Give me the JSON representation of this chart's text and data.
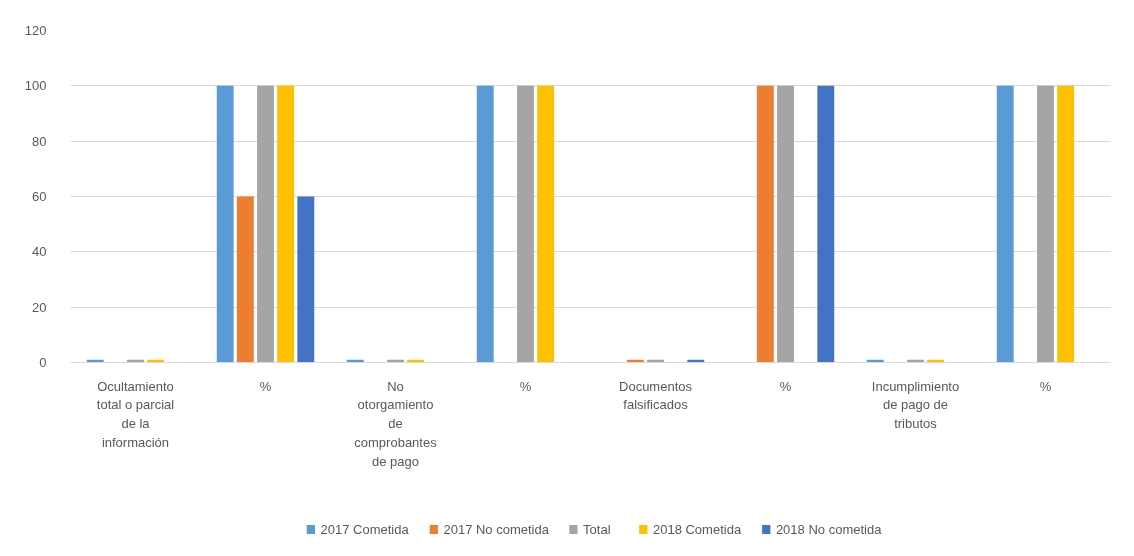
{
  "chart_data": {
    "type": "bar",
    "categories": [
      "Ocultamiento total o parcial de la información",
      "%",
      "No otorgamiento de comprobantes de pago",
      "%",
      "Documentos falsificados",
      "%",
      "Incumplimiento de pago de tributos",
      "%"
    ],
    "series": [
      {
        "name": "2017 Cometida",
        "color": "#5b9bd5",
        "values": [
          1,
          100,
          1,
          100,
          null,
          null,
          1,
          100
        ]
      },
      {
        "name": "2017 No cometida",
        "color": "#ed7d31",
        "values": [
          null,
          60,
          null,
          null,
          1,
          100,
          null,
          null
        ]
      },
      {
        "name": "Total",
        "color": "#a5a5a5",
        "values": [
          1,
          100,
          1,
          100,
          1,
          100,
          1,
          100
        ]
      },
      {
        "name": "2018 Cometida",
        "color": "#ffc000",
        "values": [
          1,
          100,
          1,
          100,
          null,
          null,
          1,
          100
        ]
      },
      {
        "name": "2018 No cometida",
        "color": "#4472c4",
        "values": [
          null,
          60,
          null,
          null,
          1,
          100,
          null,
          null
        ]
      }
    ],
    "ylim": [
      0,
      120
    ],
    "yticks": [
      0,
      20,
      40,
      60,
      80,
      100,
      120
    ],
    "grid": "y",
    "legend": "bottom"
  }
}
